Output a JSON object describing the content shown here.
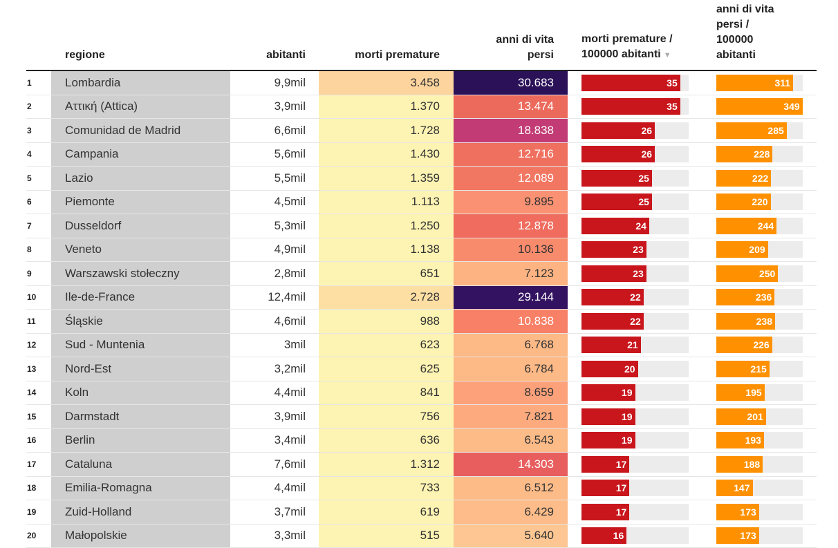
{
  "headers": {
    "region": "regione",
    "population": "abitanti",
    "premature_deaths": "morti premature",
    "years_lost": [
      "anni di vita",
      "persi"
    ],
    "deaths_per_100k": [
      "morti premature /",
      "100000 abitanti"
    ],
    "sort_indicator": "▼",
    "years_lost_per_100k": [
      "anni di vita",
      "persi /",
      "100000",
      "abitanti"
    ]
  },
  "colors": {
    "region_bg": "#cfcfcf",
    "deaths_bar": "#c8161c",
    "years_bar": "#ff9100",
    "bar_track": "#ececec"
  },
  "bar_scale": {
    "deaths_per_100k_max": 38,
    "years_lost_per_100k_max": 350
  },
  "chart_data": {
    "type": "table",
    "columns": [
      "regione",
      "abitanti",
      "morti premature",
      "anni di vita persi",
      "morti premature / 100000 abitanti",
      "anni di vita persi / 100000 abitanti"
    ],
    "sorted_by": "morti premature / 100000 abitanti",
    "sort_order": "descending",
    "rows": [
      {
        "rank": "1",
        "region": "Lombardia",
        "population": "9,9mil",
        "premature_deaths": "3.458",
        "years_lost": "30.683",
        "deaths_per_100k": 35,
        "years_lost_per_100k": 311,
        "deaths_bg": "#fdd49e",
        "years_bg": "#2a1158",
        "years_fg": "#ffffff"
      },
      {
        "rank": "2",
        "region": "Αττική (Attica)",
        "population": "3,9mil",
        "premature_deaths": "1.370",
        "years_lost": "13.474",
        "deaths_per_100k": 35,
        "years_lost_per_100k": 349,
        "deaths_bg": "#fdf3b3",
        "years_bg": "#ec6a5c",
        "years_fg": "#ffffff"
      },
      {
        "rank": "3",
        "region": "Comunidad de Madrid",
        "population": "6,6mil",
        "premature_deaths": "1.728",
        "years_lost": "18.838",
        "deaths_per_100k": 26,
        "years_lost_per_100k": 285,
        "deaths_bg": "#fdf3b3",
        "years_bg": "#c23b74",
        "years_fg": "#ffffff"
      },
      {
        "rank": "4",
        "region": "Campania",
        "population": "5,6mil",
        "premature_deaths": "1.430",
        "years_lost": "12.716",
        "deaths_per_100k": 26,
        "years_lost_per_100k": 228,
        "deaths_bg": "#fdf3b3",
        "years_bg": "#f07060",
        "years_fg": "#ffffff"
      },
      {
        "rank": "5",
        "region": "Lazio",
        "population": "5,5mil",
        "premature_deaths": "1.359",
        "years_lost": "12.089",
        "deaths_per_100k": 25,
        "years_lost_per_100k": 222,
        "deaths_bg": "#fdf3b3",
        "years_bg": "#f27762",
        "years_fg": "#ffffff"
      },
      {
        "rank": "6",
        "region": "Piemonte",
        "population": "4,5mil",
        "premature_deaths": "1.113",
        "years_lost": "9.895",
        "deaths_per_100k": 25,
        "years_lost_per_100k": 220,
        "deaths_bg": "#fdf3b3",
        "years_bg": "#f99172",
        "years_fg": "#333333"
      },
      {
        "rank": "7",
        "region": "Dusseldorf",
        "population": "5,3mil",
        "premature_deaths": "1.250",
        "years_lost": "12.878",
        "deaths_per_100k": 24,
        "years_lost_per_100k": 244,
        "deaths_bg": "#fdf3b3",
        "years_bg": "#ef6c5e",
        "years_fg": "#ffffff"
      },
      {
        "rank": "8",
        "region": "Veneto",
        "population": "4,9mil",
        "premature_deaths": "1.138",
        "years_lost": "10.136",
        "deaths_per_100k": 23,
        "years_lost_per_100k": 209,
        "deaths_bg": "#fdf3b3",
        "years_bg": "#f98b6d",
        "years_fg": "#333333"
      },
      {
        "rank": "9",
        "region": "Warszawski stołeczny",
        "population": "2,8mil",
        "premature_deaths": "651",
        "years_lost": "7.123",
        "deaths_per_100k": 23,
        "years_lost_per_100k": 250,
        "deaths_bg": "#fdf3b3",
        "years_bg": "#fdb482",
        "years_fg": "#333333"
      },
      {
        "rank": "10",
        "region": "Ile-de-France",
        "population": "12,4mil",
        "premature_deaths": "2.728",
        "years_lost": "29.144",
        "deaths_per_100k": 22,
        "years_lost_per_100k": 236,
        "deaths_bg": "#fddfa4",
        "years_bg": "#331261",
        "years_fg": "#ffffff"
      },
      {
        "rank": "11",
        "region": "Śląskie",
        "population": "4,6mil",
        "premature_deaths": "988",
        "years_lost": "10.838",
        "deaths_per_100k": 22,
        "years_lost_per_100k": 238,
        "deaths_bg": "#fdf3b3",
        "years_bg": "#f78066",
        "years_fg": "#ffffff"
      },
      {
        "rank": "12",
        "region": "Sud - Muntenia",
        "population": "3mil",
        "premature_deaths": "623",
        "years_lost": "6.768",
        "deaths_per_100k": 21,
        "years_lost_per_100k": 226,
        "deaths_bg": "#fdf3b3",
        "years_bg": "#fdb986",
        "years_fg": "#333333"
      },
      {
        "rank": "13",
        "region": "Nord-Est",
        "population": "3,2mil",
        "premature_deaths": "625",
        "years_lost": "6.784",
        "deaths_per_100k": 20,
        "years_lost_per_100k": 215,
        "deaths_bg": "#fdf3b3",
        "years_bg": "#fdb986",
        "years_fg": "#333333"
      },
      {
        "rank": "14",
        "region": "Koln",
        "population": "4,4mil",
        "premature_deaths": "841",
        "years_lost": "8.659",
        "deaths_per_100k": 19,
        "years_lost_per_100k": 195,
        "deaths_bg": "#fdf3b3",
        "years_bg": "#fca17a",
        "years_fg": "#333333"
      },
      {
        "rank": "15",
        "region": "Darmstadt",
        "population": "3,9mil",
        "premature_deaths": "756",
        "years_lost": "7.821",
        "deaths_per_100k": 19,
        "years_lost_per_100k": 201,
        "deaths_bg": "#fdf3b3",
        "years_bg": "#fdab7e",
        "years_fg": "#333333"
      },
      {
        "rank": "16",
        "region": "Berlin",
        "population": "3,4mil",
        "premature_deaths": "636",
        "years_lost": "6.543",
        "deaths_per_100k": 19,
        "years_lost_per_100k": 193,
        "deaths_bg": "#fdf3b3",
        "years_bg": "#fdbb88",
        "years_fg": "#333333"
      },
      {
        "rank": "17",
        "region": "Cataluna",
        "population": "7,6mil",
        "premature_deaths": "1.312",
        "years_lost": "14.303",
        "deaths_per_100k": 17,
        "years_lost_per_100k": 188,
        "deaths_bg": "#fdf3b3",
        "years_bg": "#e85e5e",
        "years_fg": "#ffffff"
      },
      {
        "rank": "18",
        "region": "Emilia-Romagna",
        "population": "4,4mil",
        "premature_deaths": "733",
        "years_lost": "6.512",
        "deaths_per_100k": 17,
        "years_lost_per_100k": 147,
        "deaths_bg": "#fdf3b3",
        "years_bg": "#fdbb88",
        "years_fg": "#333333"
      },
      {
        "rank": "19",
        "region": "Zuid-Holland",
        "population": "3,7mil",
        "premature_deaths": "619",
        "years_lost": "6.429",
        "deaths_per_100k": 17,
        "years_lost_per_100k": 173,
        "deaths_bg": "#fdf3b3",
        "years_bg": "#fdbc89",
        "years_fg": "#333333"
      },
      {
        "rank": "20",
        "region": "Małopolskie",
        "population": "3,3mil",
        "premature_deaths": "515",
        "years_lost": "5.640",
        "deaths_per_100k": 16,
        "years_lost_per_100k": 173,
        "deaths_bg": "#fdf3b3",
        "years_bg": "#fdc692",
        "years_fg": "#333333"
      }
    ]
  }
}
